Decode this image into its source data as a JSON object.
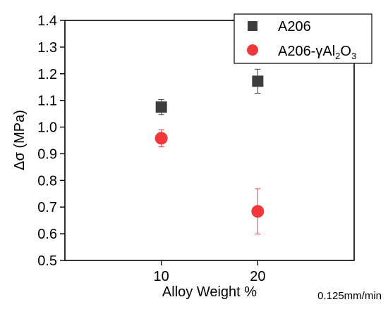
{
  "chart_data": {
    "type": "scatter",
    "xlabel": "Alloy Weight %",
    "ylabel": "Δσ (MPa)",
    "note": "0.125mm/min",
    "xlim": [
      0,
      30
    ],
    "ylim": [
      0.5,
      1.4
    ],
    "x_ticks": [
      10,
      20
    ],
    "x_tick_labels": [
      "10",
      "20"
    ],
    "y_ticks": [
      0.5,
      0.6,
      0.7,
      0.8,
      0.9,
      1.0,
      1.1,
      1.2,
      1.3,
      1.4
    ],
    "y_tick_labels": [
      "0.5",
      "0.6",
      "0.7",
      "0.8",
      "0.9",
      "1.0",
      "1.1",
      "1.2",
      "1.3",
      "1.4"
    ],
    "grid": false,
    "legend_position": "top-right",
    "series": [
      {
        "name": "A206",
        "marker": "square",
        "color": "#3d3d3d",
        "x": [
          10,
          20
        ],
        "y": [
          1.075,
          1.172
        ],
        "err": [
          0.028,
          0.045
        ]
      },
      {
        "name": "A206-γAl2O3",
        "legend_label": {
          "base": "A206-γAl",
          "sub1": "2",
          "mid": "O",
          "sub2": "3"
        },
        "marker": "circle",
        "color": "#f0373b",
        "x": [
          10,
          20
        ],
        "y": [
          0.958,
          0.684
        ],
        "err": [
          0.032,
          0.085
        ]
      }
    ]
  }
}
